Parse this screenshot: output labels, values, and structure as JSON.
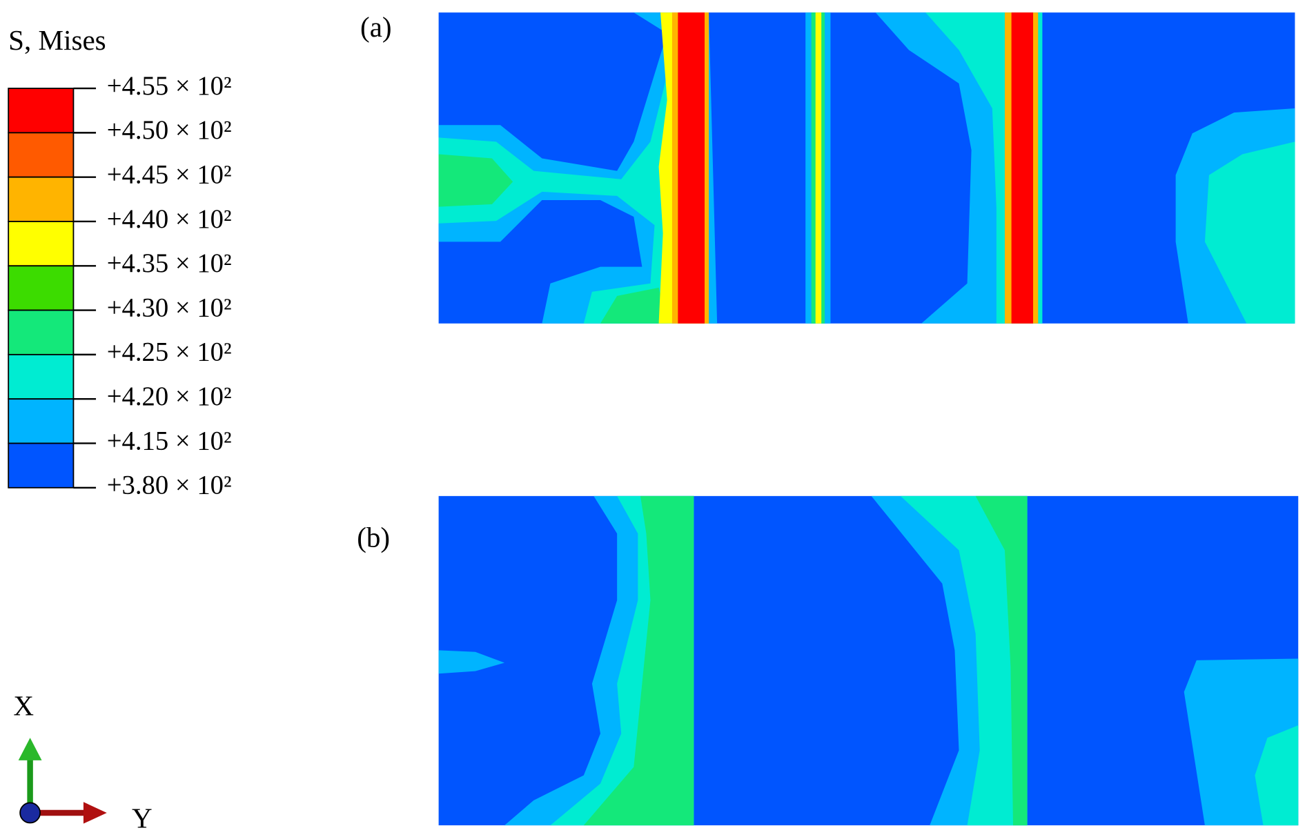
{
  "legend": {
    "title": "S, Mises",
    "levels": [
      "+4.55 × 10²",
      "+4.50 × 10²",
      "+4.45 × 10²",
      "+4.40 × 10²",
      "+4.35 × 10²",
      "+4.30 × 10²",
      "+4.25 × 10²",
      "+4.20 × 10²",
      "+4.15 × 10²",
      "+3.80 × 10²"
    ],
    "colors": [
      "#ff0000",
      "#ff5a00",
      "#ffb400",
      "#ffff00",
      "#3cdc00",
      "#14e87a",
      "#00ecd2",
      "#00b4ff",
      "#0055ff"
    ]
  },
  "panels": [
    {
      "label": "(a)"
    },
    {
      "label": "(b)"
    }
  ],
  "triad": {
    "x": "X",
    "y": "Y"
  }
}
